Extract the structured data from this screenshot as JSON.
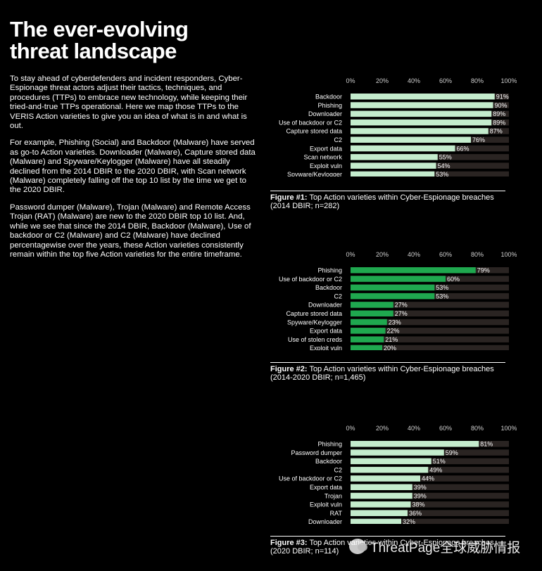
{
  "page": {
    "title_line1": "The ever-evolving",
    "title_line2": "threat landscape",
    "paragraphs": [
      "To stay ahead of cyberdefenders and incident responders, Cyber-Espionage threat actors adjust their tactics, techniques, and procedures (TTPs) to embrace new technology, while keeping their tried-and-true TTPs operational. Here we map those TTPs to the VERIS Action varieties to give you an idea of what is in and what is out.",
      "For example, Phishing (Social) and Backdoor (Malware) have served as go-to Action varieties. Downloader (Malware), Capture stored data (Malware) and Spyware/Keylogger (Malware) have all steadily declined from the 2014 DBIR to the 2020 DBIR, with Scan network (Malware) completely falling off the top 10 list by the time we get to the 2020 DBIR.",
      "Password dumper (Malware), Trojan (Malware) and Remote Access Trojan (RAT) (Malware) are new to the 2020 DBIR top 10 list. And, while we see that since the 2014 DBIR, Backdoor (Malware), Use of backdoor or C2 (Malware) and C2 (Malware) have declined percentagewise over the years, these Action varieties consistently remain within the top five Action varieties for the entire timeframe."
    ]
  },
  "watermark": {
    "text": "ThreatPage全球威胁情报"
  },
  "chart_data": [
    {
      "type": "bar",
      "orientation": "horizontal",
      "figure_label": "Figure #1:",
      "caption": "Top Action varieties within Cyber-Espionage breaches (2014 DBIR; n=282)",
      "x_ticks": [
        "0%",
        "20%",
        "40%",
        "60%",
        "80%",
        "100%"
      ],
      "xlim": [
        0,
        100
      ],
      "categories": [
        "Backdoor",
        "Phishing",
        "Downloader",
        "Use of backdoor or C2",
        "Capture stored data",
        "C2",
        "Export data",
        "Scan network",
        "Exploit vuln",
        "Spyware/Keylogger"
      ],
      "values": [
        91,
        90,
        89,
        89,
        87,
        76,
        66,
        55,
        54,
        53
      ],
      "value_labels": [
        "91%",
        "90%",
        "89%",
        "89%",
        "87%",
        "76%",
        "66%",
        "55%",
        "54%",
        "53%"
      ],
      "bar_color": "#c4eccd",
      "track_color": "#2a2422"
    },
    {
      "type": "bar",
      "orientation": "horizontal",
      "figure_label": "Figure #2:",
      "caption": "Top Action varieties within Cyber-Espionage breaches (2014-2020 DBIR; n=1,465)",
      "x_ticks": [
        "0%",
        "20%",
        "40%",
        "60%",
        "80%",
        "100%"
      ],
      "xlim": [
        0,
        100
      ],
      "categories": [
        "Phishing",
        "Use of backdoor or C2",
        "Backdoor",
        "C2",
        "Downloader",
        "Capture stored data",
        "Spyware/Keylogger",
        "Export data",
        "Use of stolen creds",
        "Exploit vuln"
      ],
      "values": [
        79,
        60,
        53,
        53,
        27,
        27,
        23,
        22,
        21,
        20
      ],
      "value_labels": [
        "79%",
        "60%",
        "53%",
        "53%",
        "27%",
        "27%",
        "23%",
        "22%",
        "21%",
        "20%"
      ],
      "bar_color": "#1fa84f",
      "track_color": "#2a2422"
    },
    {
      "type": "bar",
      "orientation": "horizontal",
      "figure_label": "Figure #3:",
      "caption": "Top Action varieties within Cyber-Espionage breaches (2020 DBIR; n=114)",
      "x_ticks": [
        "0%",
        "20%",
        "40%",
        "60%",
        "80%",
        "100%"
      ],
      "xlim": [
        0,
        100
      ],
      "categories": [
        "Phishing",
        "Password dumper",
        "Backdoor",
        "C2",
        "Use of backdoor or C2",
        "Export data",
        "Trojan",
        "Exploit vuln",
        "RAT",
        "Downloader"
      ],
      "values": [
        81,
        59,
        51,
        49,
        44,
        39,
        39,
        38,
        36,
        32
      ],
      "value_labels": [
        "81%",
        "59%",
        "51%",
        "49%",
        "44%",
        "39%",
        "39%",
        "38%",
        "36%",
        "32%"
      ],
      "bar_color": "#c4eccd",
      "track_color": "#2a2422"
    }
  ]
}
